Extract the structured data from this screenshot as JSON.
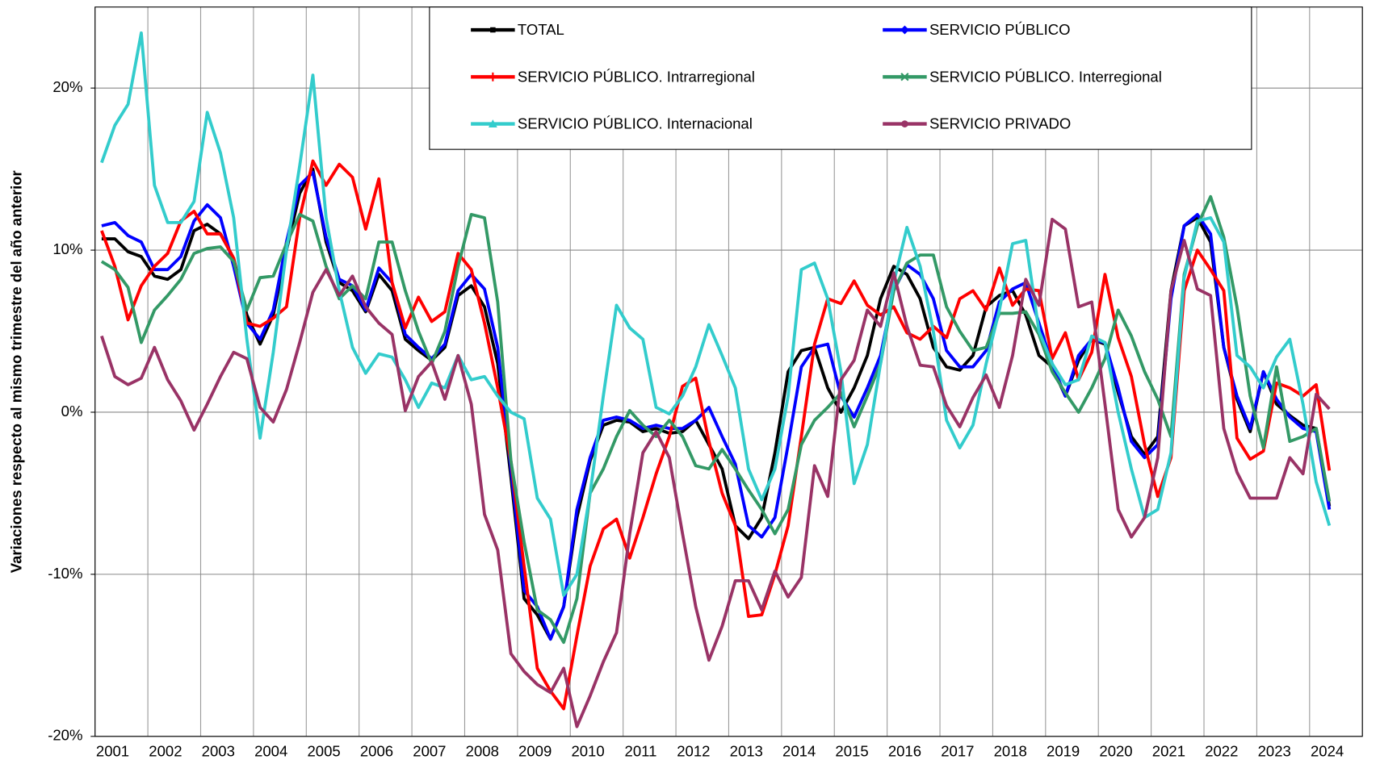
{
  "chart_data": {
    "type": "line",
    "y_label": "Variaciones respecto al mismo trimestre del año anterior",
    "categories": [
      "2001",
      null,
      null,
      null,
      "2002",
      null,
      null,
      null,
      "2003",
      null,
      null,
      null,
      "2004",
      null,
      null,
      null,
      "2005",
      null,
      null,
      null,
      "2006",
      null,
      null,
      null,
      "2007",
      null,
      null,
      null,
      "2008",
      null,
      null,
      null,
      "2009",
      null,
      null,
      null,
      "2010",
      null,
      null,
      null,
      "2011",
      null,
      null,
      null,
      "2012",
      null,
      null,
      null,
      "2013",
      null,
      null,
      null,
      "2014",
      null,
      null,
      null,
      "2015",
      null,
      null,
      null,
      "2016",
      null,
      null,
      null,
      "2017",
      null,
      null,
      null,
      "2018",
      null,
      null,
      null,
      "2019",
      null,
      null,
      null,
      "2020",
      null,
      null,
      null,
      "2021",
      null,
      null,
      null,
      "2022",
      null,
      null,
      null,
      "2023",
      null,
      null,
      null,
      "2024",
      null
    ],
    "ylim": [
      -20,
      25
    ],
    "yticks": [
      {
        "value": -20,
        "label": "-20%"
      },
      {
        "value": -10,
        "label": "-10%"
      },
      {
        "value": 0,
        "label": "0%"
      },
      {
        "value": 10,
        "label": "10%"
      },
      {
        "value": 20,
        "label": "20%"
      }
    ],
    "grid": true,
    "series": [
      {
        "name": "TOTAL",
        "color": "#000000",
        "values": [
          10.7,
          10.7,
          9.9,
          9.6,
          8.4,
          8.2,
          8.8,
          11.2,
          11.6,
          11.0,
          9.5,
          6.0,
          4.2,
          6.0,
          10.0,
          13.5,
          15.0,
          10.5,
          8.0,
          7.5,
          6.2,
          8.5,
          7.5,
          4.5,
          3.8,
          3.2,
          4.0,
          7.2,
          7.8,
          6.5,
          3.0,
          -4.0,
          -11.5,
          -12.5,
          -14.0,
          -12.0,
          -6.5,
          -3.0,
          -0.8,
          -0.5,
          -0.6,
          -1.2,
          -1.0,
          -1.3,
          -1.2,
          -0.5,
          -2.0,
          -3.5,
          -7.0,
          -7.8,
          -6.5,
          -2.5,
          2.5,
          3.8,
          4.0,
          1.5,
          0.0,
          1.5,
          3.5,
          7.0,
          9.0,
          8.5,
          7.0,
          4.0,
          2.8,
          2.6,
          3.5,
          6.5,
          7.2,
          7.5,
          6.0,
          3.5,
          2.8,
          1.0,
          3.2,
          4.5,
          4.2,
          1.2,
          -1.5,
          -2.6,
          -1.5,
          7.5,
          11.5,
          12.0,
          10.5,
          4.0,
          0.8,
          -1.2,
          2.5,
          0.5,
          -0.2,
          -0.8,
          -1.0,
          -5.8
        ]
      },
      {
        "name": "SERVICIO PÚBLICO",
        "color": "#0000ff",
        "values": [
          11.5,
          11.7,
          10.9,
          10.5,
          8.8,
          8.8,
          9.6,
          11.8,
          12.8,
          12.0,
          9.0,
          5.5,
          4.5,
          6.3,
          10.5,
          14.0,
          14.8,
          10.8,
          8.2,
          7.8,
          6.3,
          8.9,
          8.0,
          4.8,
          4.0,
          3.3,
          4.2,
          7.5,
          8.5,
          7.6,
          4.0,
          -3.5,
          -11.0,
          -12.0,
          -14.0,
          -12.0,
          -6.0,
          -2.8,
          -0.5,
          -0.3,
          -0.5,
          -1.0,
          -0.8,
          -1.0,
          -1.0,
          -0.5,
          0.3,
          -1.5,
          -3.2,
          -7.0,
          -7.7,
          -6.5,
          -2.0,
          2.8,
          4.0,
          4.2,
          1.0,
          -0.3,
          1.5,
          3.5,
          7.5,
          9.1,
          8.5,
          7.0,
          3.8,
          2.8,
          2.8,
          3.8,
          6.8,
          7.6,
          8.0,
          5.5,
          3.0,
          1.0,
          3.5,
          4.5,
          4.3,
          1.5,
          -1.8,
          -2.8,
          -2.0,
          7.0,
          11.5,
          12.2,
          11.0,
          4.0,
          1.0,
          -1.0,
          2.5,
          0.8,
          -0.3,
          -1.0,
          -1.2,
          -6.0
        ]
      },
      {
        "name": "SERVICIO PÚBLICO. Intrarregional",
        "color": "#ff0000",
        "values": [
          11.2,
          9.0,
          5.7,
          7.8,
          9.0,
          9.8,
          11.8,
          12.4,
          11.0,
          11.0,
          9.5,
          5.5,
          5.3,
          5.8,
          6.5,
          12.0,
          15.5,
          14.0,
          15.3,
          14.5,
          11.3,
          14.4,
          8.0,
          5.2,
          7.1,
          5.6,
          6.2,
          9.8,
          8.8,
          5.5,
          1.5,
          -3.0,
          -9.5,
          -15.8,
          -17.2,
          -18.3,
          -13.8,
          -9.5,
          -7.2,
          -6.6,
          -9.0,
          -6.5,
          -3.8,
          -1.5,
          1.6,
          2.1,
          -1.8,
          -5.0,
          -7.0,
          -12.6,
          -12.5,
          -10.0,
          -7.0,
          -1.5,
          4.2,
          7.0,
          6.7,
          8.1,
          6.6,
          6.0,
          6.5,
          4.9,
          4.5,
          5.3,
          4.6,
          7.0,
          7.5,
          6.3,
          8.9,
          6.6,
          7.6,
          7.5,
          3.3,
          4.9,
          2.0,
          3.7,
          8.5,
          4.6,
          2.2,
          -2.0,
          -5.2,
          -2.8,
          7.5,
          10.0,
          8.8,
          7.5,
          -1.6,
          -2.9,
          -2.4,
          1.8,
          1.5,
          1.0,
          1.7,
          -3.6
        ]
      },
      {
        "name": "SERVICIO PÚBLICO. Interregional",
        "color": "#339966",
        "values": [
          9.3,
          8.8,
          7.7,
          4.3,
          6.3,
          7.2,
          8.2,
          9.8,
          10.1,
          10.2,
          9.3,
          6.3,
          8.3,
          8.4,
          10.4,
          12.2,
          11.8,
          9.0,
          7.0,
          7.8,
          7.0,
          10.5,
          10.5,
          7.5,
          5.0,
          3.0,
          5.0,
          9.0,
          12.2,
          12.0,
          6.8,
          -3.0,
          -8.0,
          -12.2,
          -12.8,
          -14.2,
          -11.5,
          -5.0,
          -3.5,
          -1.5,
          0.1,
          -0.8,
          -1.5,
          -0.5,
          -1.5,
          -3.3,
          -3.5,
          -2.3,
          -3.5,
          -4.8,
          -6.0,
          -7.5,
          -6.0,
          -2.0,
          -0.5,
          0.3,
          1.2,
          -0.9,
          1.0,
          3.0,
          7.5,
          9.2,
          9.7,
          9.7,
          6.5,
          5.0,
          3.8,
          4.0,
          6.1,
          6.1,
          6.2,
          4.8,
          2.5,
          1.2,
          0.0,
          1.5,
          3.3,
          6.3,
          4.7,
          2.5,
          0.8,
          -1.5,
          8.5,
          11.5,
          13.3,
          10.8,
          6.5,
          1.0,
          -2.2,
          2.8,
          -1.8,
          -1.5,
          -1.0,
          -5.5
        ]
      },
      {
        "name": "SERVICIO PÚBLICO. Internacional",
        "color": "#33cccc",
        "values": [
          15.4,
          17.7,
          19.0,
          23.4,
          14.0,
          11.7,
          11.7,
          13.0,
          18.5,
          16.0,
          12.0,
          4.5,
          -1.6,
          3.7,
          10.0,
          15.2,
          20.8,
          12.0,
          7.5,
          4.0,
          2.4,
          3.6,
          3.4,
          2.0,
          0.3,
          1.8,
          1.5,
          3.5,
          2.0,
          2.2,
          1.0,
          0.0,
          -0.4,
          -5.3,
          -6.6,
          -11.3,
          -10.0,
          -5.0,
          1.0,
          6.6,
          5.2,
          4.5,
          0.3,
          -0.1,
          1.0,
          2.8,
          5.4,
          3.5,
          1.5,
          -3.5,
          -5.4,
          -3.5,
          1.0,
          8.8,
          9.2,
          7.0,
          2.5,
          -4.4,
          -2.0,
          3.0,
          8.0,
          11.4,
          9.0,
          5.0,
          -0.5,
          -2.2,
          -0.8,
          3.0,
          6.3,
          10.4,
          10.6,
          5.0,
          3.0,
          1.7,
          2.0,
          4.7,
          4.3,
          0.0,
          -3.5,
          -6.5,
          -6.0,
          -2.5,
          8.3,
          11.8,
          12.0,
          10.5,
          3.5,
          2.8,
          1.5,
          3.4,
          4.5,
          0.5,
          -4.3,
          -7.0
        ]
      },
      {
        "name": "SERVICIO PRIVADO",
        "color": "#993366",
        "values": [
          4.7,
          2.2,
          1.7,
          2.1,
          4.0,
          2.0,
          0.7,
          -1.1,
          0.5,
          2.2,
          3.7,
          3.3,
          0.3,
          -0.6,
          1.4,
          4.3,
          7.4,
          8.8,
          7.2,
          8.4,
          6.5,
          5.5,
          4.8,
          0.1,
          2.2,
          3.1,
          0.8,
          3.5,
          0.5,
          -6.3,
          -8.5,
          -14.9,
          -16.0,
          -16.8,
          -17.3,
          -15.8,
          -19.4,
          -17.5,
          -15.4,
          -13.6,
          -7.5,
          -2.5,
          -1.2,
          -2.8,
          -7.5,
          -12.0,
          -15.3,
          -13.2,
          -10.4,
          -10.4,
          -12.2,
          -9.8,
          -11.4,
          -10.2,
          -3.3,
          -5.2,
          2.0,
          3.2,
          6.3,
          5.3,
          8.6,
          5.3,
          2.9,
          2.8,
          0.4,
          -0.9,
          0.9,
          2.3,
          0.3,
          3.5,
          8.2,
          6.6,
          11.9,
          11.3,
          6.5,
          6.8,
          0.5,
          -6.0,
          -7.7,
          -6.5,
          -2.8,
          7.5,
          10.6,
          7.6,
          7.2,
          -1.0,
          -3.7,
          -5.3,
          -5.3,
          -5.3,
          -2.8,
          -3.8,
          1.1,
          0.2
        ]
      }
    ]
  }
}
